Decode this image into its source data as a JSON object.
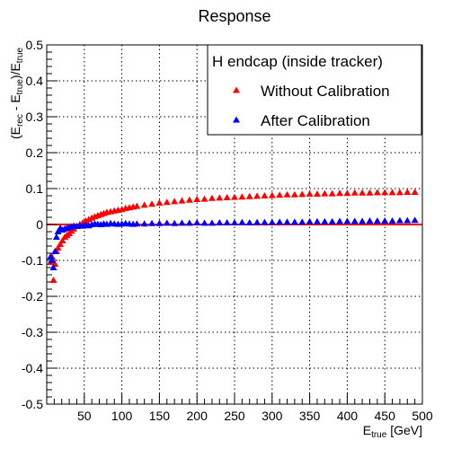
{
  "chart_data": {
    "type": "scatter",
    "title": "Response",
    "xlabel": {
      "main": "E",
      "sub": "true",
      "unit": " [GeV]"
    },
    "ylabel": {
      "main": "(E",
      "sub1": "rec",
      "mid": " - E",
      "sub2": "true",
      "end": ")/E",
      "sub3": "true"
    },
    "xlim": [
      0,
      500
    ],
    "ylim": [
      -0.5,
      0.5
    ],
    "x_ticks": [
      50,
      100,
      150,
      200,
      250,
      300,
      350,
      400,
      450,
      500
    ],
    "y_ticks": [
      -0.5,
      -0.4,
      -0.3,
      -0.2,
      -0.1,
      0,
      0.1,
      0.2,
      0.3,
      0.4,
      0.5
    ],
    "grid": true,
    "reference_line": {
      "y": 0,
      "color": "#ff0000"
    },
    "legend": {
      "title": "H endcap (inside tracker)",
      "position": "top-right",
      "entries": [
        "Without Calibration",
        "After Calibration"
      ]
    },
    "series": [
      {
        "name": "Without Calibration",
        "color": "#ff0000",
        "marker": "triangle-up",
        "x": [
          5,
          7,
          9,
          11,
          13,
          15,
          18,
          21,
          24,
          27,
          30,
          33,
          36,
          40,
          44,
          48,
          52,
          56,
          60,
          64,
          68,
          72,
          76,
          80,
          85,
          90,
          95,
          100,
          105,
          110,
          115,
          120,
          130,
          140,
          150,
          160,
          170,
          180,
          190,
          200,
          210,
          220,
          230,
          240,
          250,
          260,
          270,
          280,
          290,
          300,
          310,
          320,
          330,
          340,
          350,
          360,
          370,
          380,
          390,
          400,
          410,
          420,
          430,
          440,
          450,
          460,
          470,
          480,
          490
        ],
        "y": [
          -0.105,
          -0.09,
          -0.155,
          -0.11,
          -0.075,
          -0.065,
          -0.055,
          -0.045,
          -0.035,
          -0.03,
          -0.025,
          -0.018,
          -0.012,
          -0.005,
          0.0,
          0.005,
          0.01,
          0.014,
          0.018,
          0.022,
          0.025,
          0.028,
          0.031,
          0.034,
          0.036,
          0.038,
          0.04,
          0.042,
          0.045,
          0.047,
          0.049,
          0.051,
          0.054,
          0.057,
          0.06,
          0.062,
          0.064,
          0.066,
          0.068,
          0.07,
          0.071,
          0.073,
          0.074,
          0.075,
          0.076,
          0.077,
          0.078,
          0.079,
          0.08,
          0.081,
          0.082,
          0.083,
          0.083,
          0.084,
          0.085,
          0.085,
          0.086,
          0.086,
          0.087,
          0.087,
          0.088,
          0.088,
          0.088,
          0.089,
          0.089,
          0.089,
          0.089,
          0.09,
          0.09
        ]
      },
      {
        "name": "After Calibration",
        "color": "#0000ff",
        "marker": "triangle-up",
        "x": [
          5,
          7,
          9,
          11,
          13,
          15,
          18,
          21,
          24,
          27,
          30,
          33,
          36,
          40,
          44,
          48,
          52,
          56,
          60,
          64,
          68,
          72,
          76,
          80,
          85,
          90,
          95,
          100,
          105,
          110,
          115,
          120,
          130,
          140,
          150,
          160,
          170,
          180,
          190,
          200,
          210,
          220,
          230,
          240,
          250,
          260,
          270,
          280,
          290,
          300,
          310,
          320,
          330,
          340,
          350,
          360,
          370,
          380,
          390,
          400,
          410,
          420,
          430,
          440,
          450,
          460,
          470,
          480,
          490
        ],
        "y": [
          -0.09,
          -0.1,
          -0.12,
          -0.075,
          -0.035,
          -0.02,
          -0.01,
          -0.015,
          -0.012,
          -0.01,
          -0.008,
          -0.006,
          -0.004,
          -0.005,
          -0.003,
          -0.004,
          -0.002,
          -0.003,
          0.0,
          0.002,
          0.001,
          0.0,
          0.002,
          0.001,
          0.003,
          0.002,
          0.001,
          0.002,
          0.003,
          0.002,
          0.001,
          0.002,
          0.002,
          0.003,
          0.003,
          0.004,
          0.003,
          0.004,
          0.004,
          0.005,
          0.004,
          0.004,
          0.005,
          0.005,
          0.005,
          0.006,
          0.005,
          0.006,
          0.006,
          0.006,
          0.007,
          0.007,
          0.007,
          0.007,
          0.008,
          0.008,
          0.008,
          0.008,
          0.009,
          0.009,
          0.009,
          0.009,
          0.01,
          0.01,
          0.01,
          0.01,
          0.011,
          0.011,
          0.012
        ]
      }
    ]
  }
}
